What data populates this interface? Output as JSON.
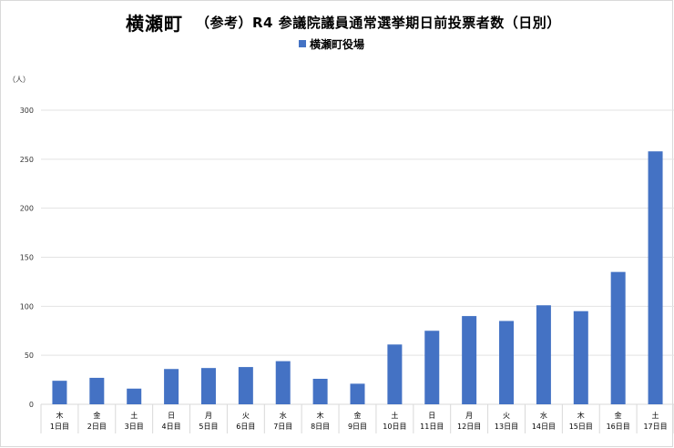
{
  "title": "横瀬町",
  "subtitle": "（参考）R4 参議院議員通常選挙期日前投票者数（日別）",
  "unit_label": "（人）",
  "colors": {
    "bar": "#4472c4",
    "grid": "#e3e3e3",
    "axis": "#d9d9d9"
  },
  "chart_data": {
    "type": "bar",
    "title": "横瀬町 （参考）R4 参議院議員通常選挙期日前投票者数（日別）",
    "xlabel": "",
    "ylabel": "（人）",
    "ylim": [
      0,
      300
    ],
    "yticks": [
      0,
      50,
      100,
      150,
      200,
      250,
      300
    ],
    "grid": true,
    "legend_position": "top-center",
    "categories": [
      {
        "weekday": "木",
        "day": "1日目"
      },
      {
        "weekday": "金",
        "day": "2日目"
      },
      {
        "weekday": "土",
        "day": "3日目"
      },
      {
        "weekday": "日",
        "day": "4日目"
      },
      {
        "weekday": "月",
        "day": "5日目"
      },
      {
        "weekday": "火",
        "day": "6日目"
      },
      {
        "weekday": "水",
        "day": "7日目"
      },
      {
        "weekday": "木",
        "day": "8日目"
      },
      {
        "weekday": "金",
        "day": "9日目"
      },
      {
        "weekday": "土",
        "day": "10日目"
      },
      {
        "weekday": "日",
        "day": "11日目"
      },
      {
        "weekday": "月",
        "day": "12日目"
      },
      {
        "weekday": "火",
        "day": "13日目"
      },
      {
        "weekday": "水",
        "day": "14日目"
      },
      {
        "weekday": "木",
        "day": "15日目"
      },
      {
        "weekday": "金",
        "day": "16日目"
      },
      {
        "weekday": "土",
        "day": "17日目"
      }
    ],
    "series": [
      {
        "name": "横瀬町役場",
        "values": [
          24,
          27,
          16,
          36,
          37,
          38,
          44,
          26,
          21,
          61,
          75,
          90,
          85,
          101,
          95,
          135,
          258
        ]
      }
    ]
  }
}
